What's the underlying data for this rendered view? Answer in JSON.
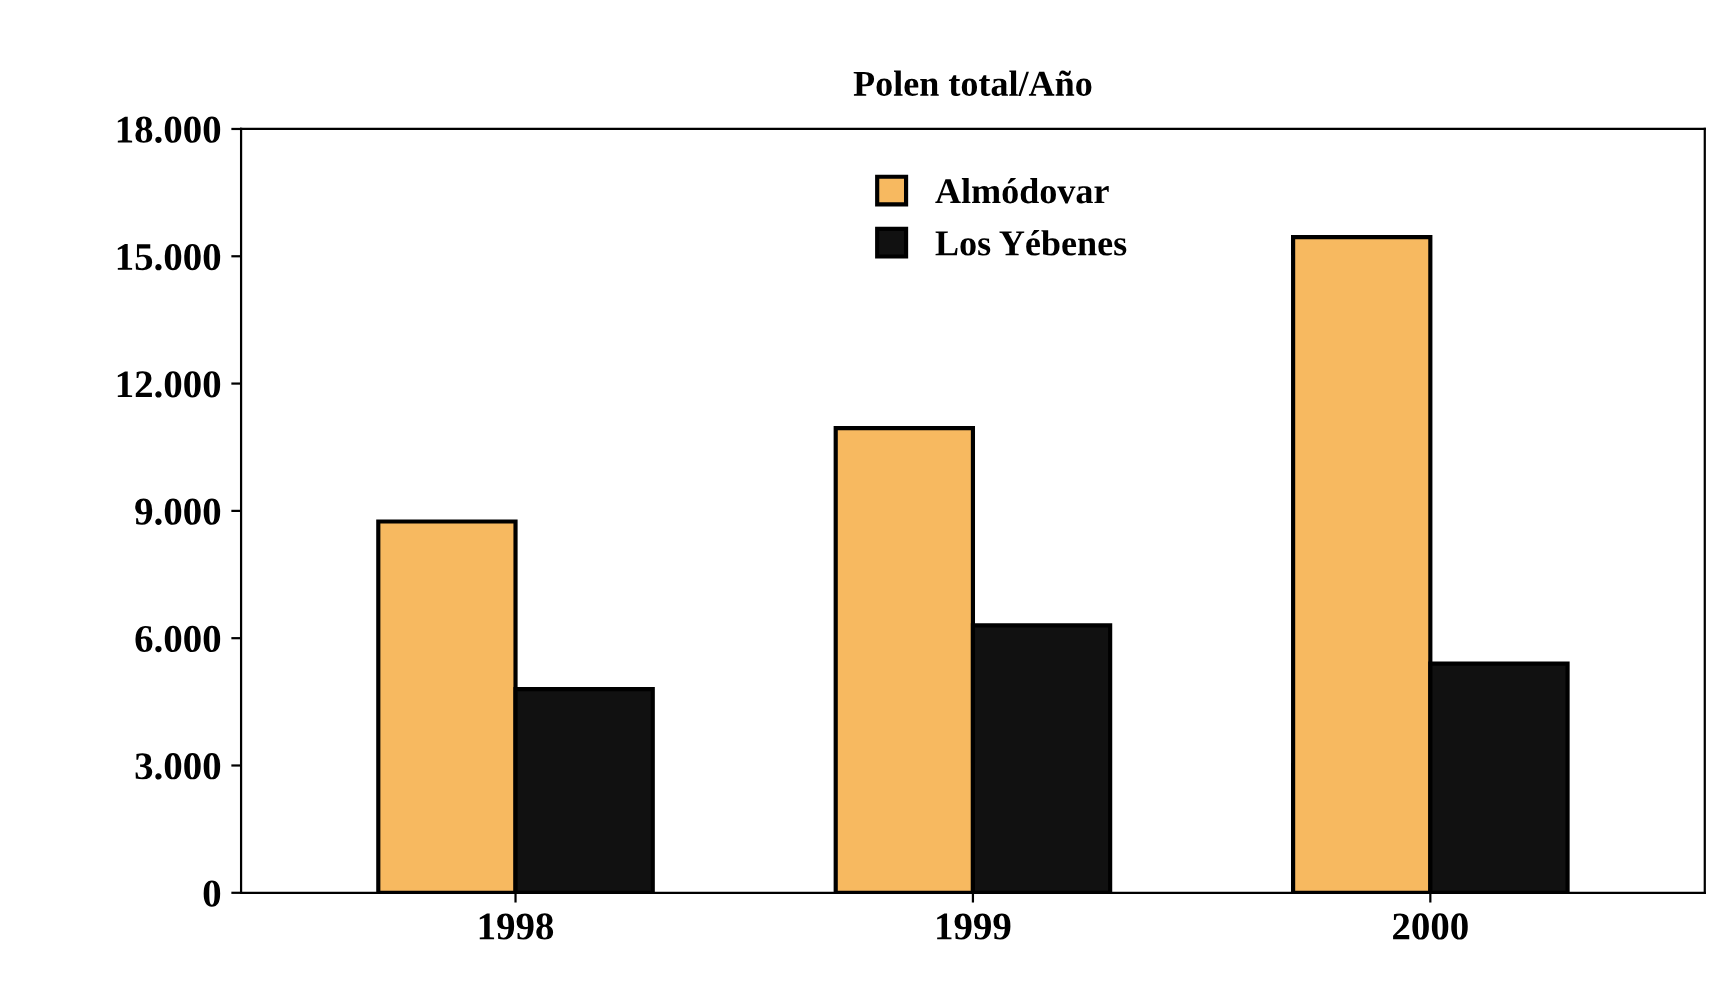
{
  "chart_data": {
    "type": "bar",
    "title": "Polen total/Año",
    "categories": [
      "1998",
      "1999",
      "2000"
    ],
    "series": [
      {
        "name": "Almódovar",
        "color": "#f7b960",
        "values": [
          8750,
          10950,
          15450
        ]
      },
      {
        "name": "Los Yébenes",
        "color": "#111111",
        "values": [
          4800,
          6300,
          5400
        ]
      }
    ],
    "ylim": [
      0,
      18000
    ],
    "yticks": [
      {
        "value": 0,
        "label": "0"
      },
      {
        "value": 3000,
        "label": "3.000"
      },
      {
        "value": 6000,
        "label": "6.000"
      },
      {
        "value": 9000,
        "label": "9.000"
      },
      {
        "value": 12000,
        "label": "12.000"
      },
      {
        "value": 15000,
        "label": "15.000"
      },
      {
        "value": 18000,
        "label": "18.000"
      }
    ],
    "grid": false,
    "legend": "top"
  }
}
